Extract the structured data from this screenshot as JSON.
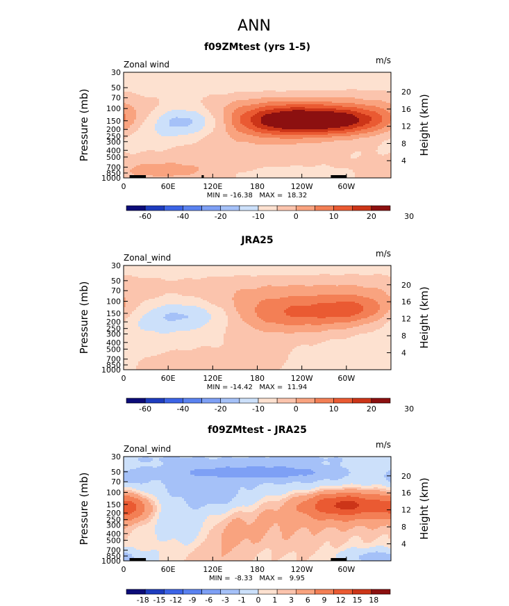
{
  "page": {
    "season": "ANN"
  },
  "colors": {
    "scale": [
      "#0c0c78",
      "#1e3cbe",
      "#3c64e6",
      "#5a82f0",
      "#7ea0f5",
      "#a5c1f8",
      "#cce0fa",
      "#fde1d0",
      "#fbc4ad",
      "#f9a37f",
      "#f37f55",
      "#ea5a32",
      "#cc3518",
      "#8c1010"
    ]
  },
  "chart_data": [
    {
      "type": "heatmap",
      "title": "f09ZMtest (yrs 1-5)",
      "left_label": "Zonal wind",
      "units": "m/s",
      "ylabel": "Pressure (mb)",
      "ylabel_right": "Height (km)",
      "x_ticks": [
        "0",
        "60E",
        "120E",
        "180",
        "120W",
        "60W"
      ],
      "x_tick_lons": [
        0,
        60,
        120,
        180,
        240,
        300
      ],
      "xlim": [
        0,
        360
      ],
      "p_ticks": [
        "30",
        "50",
        "70",
        "100",
        "150",
        "200",
        "250",
        "300",
        "400",
        "500",
        "700",
        "850",
        "1000"
      ],
      "p_tick_values": [
        30,
        50,
        70,
        100,
        150,
        200,
        250,
        300,
        400,
        500,
        700,
        850,
        1000
      ],
      "ylim": [
        1000,
        30
      ],
      "height_ticks": [
        "20",
        "16",
        "12",
        "8",
        "4"
      ],
      "height_tick_values": [
        20,
        16,
        12,
        8,
        4
      ],
      "stats": "MIN = -16.38   MAX =  18.32",
      "min": -16.38,
      "max": 18.32,
      "levels": [
        -60,
        -50,
        -40,
        -30,
        -20,
        -15,
        -10,
        -5,
        0,
        5,
        10,
        15,
        20,
        25,
        30
      ],
      "colorbar_labels": [
        "-60",
        "-40",
        "-20",
        "-10",
        "0",
        "10",
        "20",
        "30"
      ],
      "colorbar_label_edges": [
        1,
        3,
        5,
        7,
        9,
        11,
        13,
        15
      ],
      "blobs": [
        {
          "lon": 290,
          "p": 150,
          "slon": 55,
          "sp": 0.33,
          "amp": 20
        },
        {
          "lon": 210,
          "p": 150,
          "slon": 50,
          "sp": 0.38,
          "amp": 18
        },
        {
          "lon": 250,
          "p": 120,
          "slon": 110,
          "sp": 0.55,
          "amp": 8
        },
        {
          "lon": 85,
          "p": 150,
          "slon": 38,
          "sp": 0.33,
          "amp": -13
        },
        {
          "lon": 30,
          "p": 240,
          "slon": 45,
          "sp": 0.45,
          "amp": -5
        },
        {
          "lon": 40,
          "p": 800,
          "slon": 55,
          "sp": 0.25,
          "amp": 6
        },
        {
          "lon": 240,
          "p": 900,
          "slon": 50,
          "sp": 0.15,
          "amp": -5
        },
        {
          "lon": 180,
          "p": 45,
          "slon": 200,
          "sp": 0.35,
          "amp": -4
        },
        {
          "lon": 110,
          "p": 450,
          "slon": 70,
          "sp": 0.45,
          "amp": 3
        }
      ],
      "terrain": [
        [
          8,
          28
        ],
        [
          22,
          30
        ],
        [
          105,
          108
        ],
        [
          279,
          300
        ]
      ]
    },
    {
      "type": "heatmap",
      "title": "JRA25",
      "left_label": "Zonal_wind",
      "units": "m/s",
      "ylabel": "Pressure (mb)",
      "ylabel_right": "Height (km)",
      "x_ticks": [
        "0",
        "60E",
        "120E",
        "180",
        "120W",
        "60W"
      ],
      "x_tick_lons": [
        0,
        60,
        120,
        180,
        240,
        300
      ],
      "xlim": [
        0,
        360
      ],
      "p_ticks": [
        "30",
        "50",
        "70",
        "100",
        "150",
        "200",
        "250",
        "300",
        "400",
        "500",
        "700",
        "850",
        "1000"
      ],
      "p_tick_values": [
        30,
        50,
        70,
        100,
        150,
        200,
        250,
        300,
        400,
        500,
        700,
        850,
        1000
      ],
      "ylim": [
        1000,
        30
      ],
      "height_ticks": [
        "20",
        "16",
        "12",
        "8",
        "4"
      ],
      "height_tick_values": [
        20,
        16,
        12,
        8,
        4
      ],
      "stats": "MIN = -14.42   MAX =  11.94",
      "min": -14.42,
      "max": 11.94,
      "levels": [
        -60,
        -50,
        -40,
        -30,
        -20,
        -15,
        -10,
        -5,
        0,
        5,
        10,
        15,
        20,
        25,
        30
      ],
      "colorbar_labels": [
        "-60",
        "-40",
        "-20",
        "-10",
        "0",
        "10",
        "20",
        "30"
      ],
      "colorbar_label_edges": [
        1,
        3,
        5,
        7,
        9,
        11,
        13,
        15
      ],
      "blobs": [
        {
          "lon": 230,
          "p": 150,
          "slon": 70,
          "sp": 0.45,
          "amp": 14
        },
        {
          "lon": 315,
          "p": 130,
          "slon": 35,
          "sp": 0.35,
          "amp": 9
        },
        {
          "lon": 250,
          "p": 70,
          "slon": 120,
          "sp": 0.6,
          "amp": 4
        },
        {
          "lon": 90,
          "p": 160,
          "slon": 50,
          "sp": 0.35,
          "amp": -11
        },
        {
          "lon": 20,
          "p": 250,
          "slon": 50,
          "sp": 0.5,
          "amp": -4
        },
        {
          "lon": 80,
          "p": 800,
          "slon": 70,
          "sp": 0.3,
          "amp": 4
        },
        {
          "lon": 330,
          "p": 700,
          "slon": 60,
          "sp": 0.4,
          "amp": -4
        },
        {
          "lon": 180,
          "p": 35,
          "slon": 250,
          "sp": 0.2,
          "amp": -4
        }
      ],
      "terrain": []
    },
    {
      "type": "heatmap",
      "title": "f09ZMtest - JRA25",
      "left_label": "Zonal_wind",
      "units": "m/s",
      "ylabel": "Pressure (mb)",
      "ylabel_right": "Height (km)",
      "x_ticks": [
        "0",
        "60E",
        "120E",
        "180",
        "120W",
        "60W"
      ],
      "x_tick_lons": [
        0,
        60,
        120,
        180,
        240,
        300
      ],
      "xlim": [
        0,
        360
      ],
      "p_ticks": [
        "30",
        "50",
        "70",
        "100",
        "150",
        "200",
        "250",
        "300",
        "400",
        "500",
        "700",
        "850",
        "1000"
      ],
      "p_tick_values": [
        30,
        50,
        70,
        100,
        150,
        200,
        250,
        300,
        400,
        500,
        700,
        850,
        1000
      ],
      "ylim": [
        1000,
        30
      ],
      "height_ticks": [
        "20",
        "16",
        "12",
        "8",
        "4"
      ],
      "height_tick_values": [
        20,
        16,
        12,
        8,
        4
      ],
      "stats": "MIN =  -8.33   MAX =   9.95",
      "min": -8.33,
      "max": 9.95,
      "levels": [
        -21,
        -18,
        -15,
        -12,
        -9,
        -6,
        -3,
        -1,
        0,
        1,
        3,
        6,
        9,
        12,
        15,
        18,
        21
      ],
      "colorbar_labels": [
        "-18",
        "-15",
        "-12",
        "-9",
        "-6",
        "-3",
        "-1",
        "0",
        "1",
        "3",
        "6",
        "9",
        "12",
        "15",
        "18"
      ],
      "colorbar_label_edges": [
        1,
        2,
        3,
        4,
        5,
        6,
        7,
        8,
        9,
        10,
        11,
        12,
        13,
        14,
        15
      ],
      "blobs": [
        {
          "lon": 170,
          "p": 50,
          "slon": 75,
          "sp": 0.17,
          "amp": -6
        },
        {
          "lon": 180,
          "p": 60,
          "slon": 220,
          "sp": 0.5,
          "amp": -3
        },
        {
          "lon": 180,
          "p": 32,
          "slon": 250,
          "sp": 0.12,
          "amp": -2
        },
        {
          "lon": 125,
          "p": 120,
          "slon": 40,
          "sp": 0.35,
          "amp": -3
        },
        {
          "lon": 300,
          "p": 150,
          "slon": 38,
          "sp": 0.3,
          "amp": 9
        },
        {
          "lon": 260,
          "p": 200,
          "slon": 60,
          "sp": 0.55,
          "amp": 2
        },
        {
          "lon": 10,
          "p": 170,
          "slon": 18,
          "sp": 0.3,
          "amp": 6
        },
        {
          "lon": 75,
          "p": 300,
          "slon": 40,
          "sp": 0.55,
          "amp": -2
        },
        {
          "lon": 140,
          "p": 450,
          "slon": 25,
          "sp": 0.5,
          "amp": 2
        },
        {
          "lon": 340,
          "p": 900,
          "slon": 40,
          "sp": 0.2,
          "amp": -4
        },
        {
          "lon": 10,
          "p": 60,
          "slon": 12,
          "sp": 0.15,
          "amp": -3
        }
      ],
      "terrain": [
        [
          8,
          28
        ],
        [
          22,
          30
        ],
        [
          279,
          300
        ]
      ]
    }
  ]
}
